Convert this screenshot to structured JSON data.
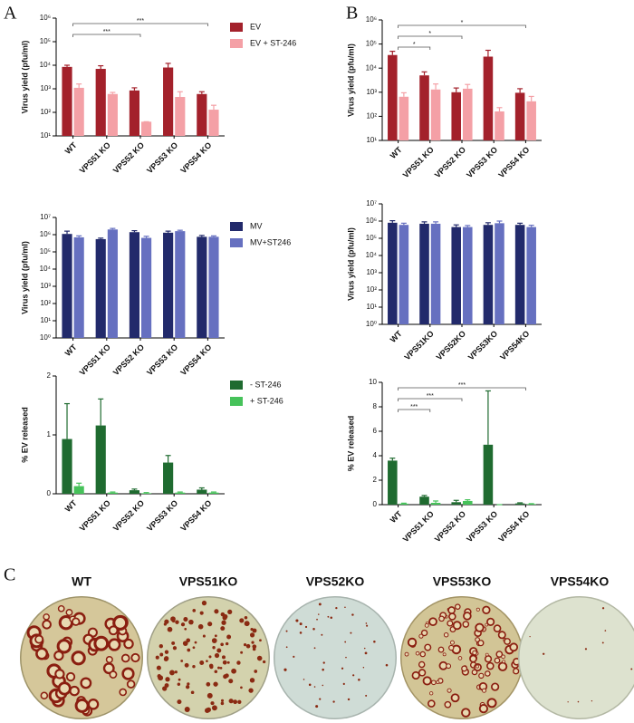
{
  "panel_labels": [
    "A",
    "B",
    "C"
  ],
  "plates": [
    "WT",
    "VPS51KO",
    "VPS52KO",
    "VPS53KO",
    "VPS54KO"
  ],
  "chart_data": [
    {
      "type": "bar",
      "y_label": "Virus yield (pfu/ml)",
      "log": true,
      "legend": "right",
      "categories": [
        "WT",
        "VPS51 KO",
        "VPS52 KO",
        "VPS53 KO",
        "VPS54 KO"
      ],
      "series": [
        {
          "name": "EV",
          "color": "#a3212b",
          "values": [
            8500,
            7000,
            850,
            8000,
            600
          ],
          "errors": [
            1500,
            2500,
            250,
            4000,
            150
          ]
        },
        {
          "name": "EV + ST-246",
          "color": "#f4a0a6",
          "values": [
            1100,
            600,
            40,
            450,
            130
          ],
          "errors": [
            500,
            100,
            0,
            300,
            70
          ]
        }
      ],
      "ylim": [
        10,
        1000000
      ],
      "yticks": [
        {
          "value": 10,
          "label": "10¹"
        },
        {
          "value": 100,
          "label": "10²"
        },
        {
          "value": 1000,
          "label": "10³"
        },
        {
          "value": 10000,
          "label": "10⁴"
        },
        {
          "value": 100000,
          "label": "10⁵"
        },
        {
          "value": 1000000,
          "label": "10⁶"
        }
      ],
      "annotations": [
        {
          "from": 0,
          "to": 4,
          "label": "***"
        },
        {
          "from": 0,
          "to": 2,
          "label": "***"
        }
      ]
    },
    {
      "type": "bar",
      "y_label": "Virus yield (pfu/ml)",
      "log": true,
      "legend": "right",
      "categories": [
        "WT",
        "VPS51 KO",
        "VPS52 KO",
        "VPS53 KO",
        "VPS54 KO"
      ],
      "series": [
        {
          "name": "MV",
          "color": "#222a6b",
          "values": [
            1100000,
            550000,
            1400000,
            1300000,
            750000
          ],
          "errors": [
            500000,
            80000,
            300000,
            300000,
            150000
          ]
        },
        {
          "name": "MV+ST246",
          "color": "#6670c0",
          "values": [
            700000,
            2000000,
            650000,
            1600000,
            750000
          ],
          "errors": [
            150000,
            300000,
            150000,
            200000,
            100000
          ]
        }
      ],
      "ylim": [
        1,
        10000000
      ],
      "yticks": [
        {
          "value": 1,
          "label": "10⁰"
        },
        {
          "value": 10,
          "label": "10¹"
        },
        {
          "value": 100,
          "label": "10²"
        },
        {
          "value": 1000,
          "label": "10³"
        },
        {
          "value": 10000,
          "label": "10⁴"
        },
        {
          "value": 100000,
          "label": "10⁵"
        },
        {
          "value": 1000000,
          "label": "10⁶"
        },
        {
          "value": 10000000,
          "label": "10⁷"
        }
      ]
    },
    {
      "type": "bar",
      "y_label": "% EV released",
      "log": false,
      "legend": "right",
      "categories": [
        "WT",
        "VPS51 KO",
        "VPS52 KO",
        "VPS53 KO",
        "VPS54 KO"
      ],
      "series": [
        {
          "name": "- ST-246",
          "color": "#1f6b30",
          "values": [
            0.93,
            1.16,
            0.06,
            0.53,
            0.07
          ],
          "errors": [
            0.6,
            0.45,
            0.02,
            0.12,
            0.03
          ]
        },
        {
          "name": "+ ST-246",
          "color": "#46c25a",
          "values": [
            0.13,
            0.02,
            0.01,
            0.02,
            0.02
          ],
          "errors": [
            0.05,
            0.01,
            0.01,
            0.01,
            0.01
          ]
        }
      ],
      "ylim": [
        0,
        2
      ],
      "yticks": [
        0,
        1,
        2
      ]
    },
    {
      "type": "bar",
      "y_label": "Virus yield (pfu/ml)",
      "log": true,
      "categories": [
        "WT",
        "VPS51 KO",
        "VPS52 KO",
        "VPS53 KO",
        "VPS54 KO"
      ],
      "series": [
        {
          "color": "#a3212b",
          "values": [
            35000,
            5000,
            1000,
            30000,
            950
          ],
          "errors": [
            15000,
            2000,
            500,
            25000,
            450
          ]
        },
        {
          "color": "#f4a0a6",
          "values": [
            650,
            1300,
            1400,
            160,
            420
          ],
          "errors": [
            300,
            900,
            700,
            70,
            250
          ]
        }
      ],
      "ylim": [
        10,
        1000000
      ],
      "yticks": [
        {
          "value": 10,
          "label": "10¹"
        },
        {
          "value": 100,
          "label": "10²"
        },
        {
          "value": 1000,
          "label": "10³"
        },
        {
          "value": 10000,
          "label": "10⁴"
        },
        {
          "value": 100000,
          "label": "10⁵"
        },
        {
          "value": 1000000,
          "label": "10⁶"
        }
      ],
      "annotations": [
        {
          "from": 0,
          "to": 4,
          "label": "*"
        },
        {
          "from": 0,
          "to": 2,
          "label": "*"
        },
        {
          "from": 0,
          "to": 1,
          "label": "*"
        }
      ]
    },
    {
      "type": "bar",
      "y_label": "Virus yield (pfu/ml)",
      "log": true,
      "categories": [
        "WT",
        "VPS51KO",
        "VPS52KO",
        "VPS53KO",
        "VPS54KO"
      ],
      "series": [
        {
          "color": "#222a6b",
          "values": [
            800000,
            700000,
            450000,
            600000,
            600000
          ],
          "errors": [
            250000,
            200000,
            150000,
            200000,
            150000
          ]
        },
        {
          "color": "#6670c0",
          "values": [
            600000,
            700000,
            450000,
            750000,
            450000
          ],
          "errors": [
            150000,
            200000,
            100000,
            250000,
            120000
          ]
        }
      ],
      "ylim": [
        1,
        10000000
      ],
      "yticks": [
        {
          "value": 1,
          "label": "10⁰"
        },
        {
          "value": 10,
          "label": "10¹"
        },
        {
          "value": 100,
          "label": "10²"
        },
        {
          "value": 1000,
          "label": "10³"
        },
        {
          "value": 10000,
          "label": "10⁴"
        },
        {
          "value": 100000,
          "label": "10⁵"
        },
        {
          "value": 1000000,
          "label": "10⁶"
        },
        {
          "value": 10000000,
          "label": "10⁷"
        }
      ]
    },
    {
      "type": "bar",
      "y_label": "% EV released",
      "log": false,
      "categories": [
        "WT",
        "VPS51 KO",
        "VPS52 KO",
        "VPS53 KO",
        "VPS54 KO"
      ],
      "series": [
        {
          "color": "#1f6b30",
          "values": [
            3.6,
            0.65,
            0.2,
            4.9,
            0.1
          ],
          "errors": [
            0.2,
            0.1,
            0.15,
            4.4,
            0.05
          ]
        },
        {
          "color": "#46c25a",
          "values": [
            0.08,
            0.15,
            0.3,
            0,
            0.05
          ],
          "errors": [
            0.04,
            0.15,
            0.1,
            0,
            0.03
          ]
        }
      ],
      "ylim": [
        0,
        10
      ],
      "yticks": [
        0,
        2,
        4,
        6,
        8,
        10
      ],
      "annotations": [
        {
          "from": 0,
          "to": 4,
          "label": "***"
        },
        {
          "from": 0,
          "to": 2,
          "label": "***"
        },
        {
          "from": 0,
          "to": 1,
          "label": "***"
        }
      ]
    }
  ]
}
